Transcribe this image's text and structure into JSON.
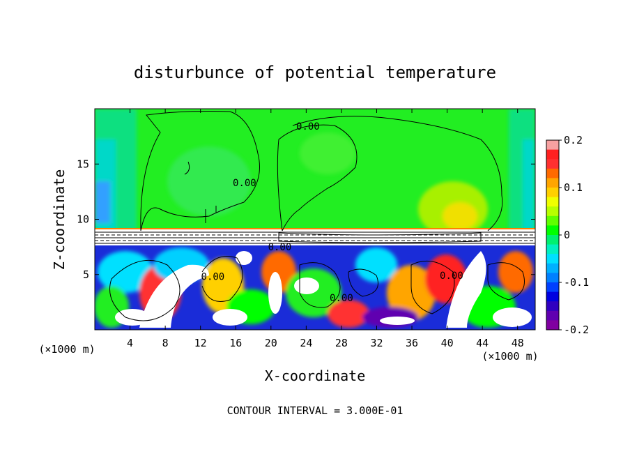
{
  "chart_data": {
    "type": "heatmap",
    "title": "disturbunce of potential temperature",
    "xlabel": "X-coordinate",
    "ylabel": "Z-coordinate",
    "x_unit_left": "(×1000 m)",
    "x_unit_right": "(×1000 m)",
    "x_ticks": [
      4,
      8,
      12,
      16,
      20,
      24,
      28,
      32,
      36,
      40,
      44,
      48
    ],
    "y_ticks": [
      5,
      10,
      15
    ],
    "xlim": [
      0,
      50
    ],
    "ylim": [
      0,
      20
    ],
    "footer": "CONTOUR INTERVAL = 3.000E-01",
    "contour_labels": [
      {
        "text": "0.00",
        "x": 24.2,
        "z": 18.1
      },
      {
        "text": "0.00",
        "x": 17.0,
        "z": 13.0
      },
      {
        "text": "0.00",
        "x": 21.0,
        "z": 7.2
      },
      {
        "text": "0.00",
        "x": 13.4,
        "z": 4.5
      },
      {
        "text": "0.00",
        "x": 28.0,
        "z": 2.6
      },
      {
        "text": "0.00",
        "x": 40.5,
        "z": 4.6
      }
    ],
    "colorbar": {
      "min": -0.2,
      "max": 0.2,
      "tick_values": [
        0.2,
        0.1,
        0,
        -0.1,
        -0.2
      ],
      "tick_labels": [
        "0.2",
        "0.1",
        "0",
        "-0.1",
        "-0.2"
      ],
      "colors": [
        "#f7a1a1",
        "#ff2020",
        "#ff3030",
        "#ff6a00",
        "#ffa500",
        "#ffd000",
        "#f0ff00",
        "#b8ff00",
        "#60ff00",
        "#00ff00",
        "#00f070",
        "#00f0c0",
        "#00e0ff",
        "#00b0ff",
        "#0080ff",
        "#0040ff",
        "#0000e0",
        "#3000c0",
        "#6000b0",
        "#8000a0"
      ]
    }
  }
}
